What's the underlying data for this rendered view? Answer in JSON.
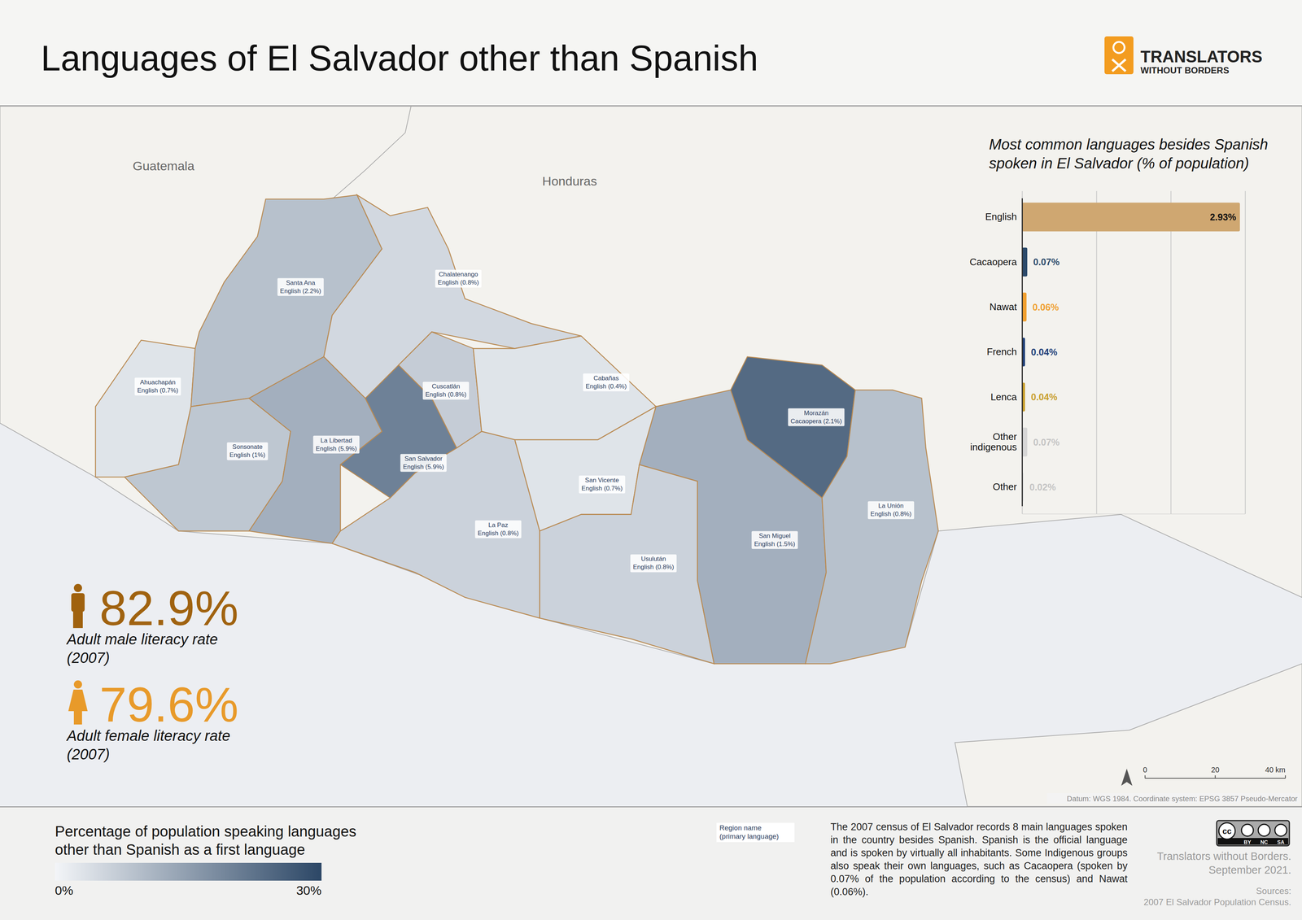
{
  "header": {
    "title": "Languages of El Salvador other than Spanish",
    "logo": [
      "TRANSLATORS",
      "WITHOUT BORDERS"
    ]
  },
  "map": {
    "countries": [
      {
        "name": "Guatemala"
      },
      {
        "name": "Honduras"
      }
    ],
    "regions": [
      {
        "name": "Ahuachapán",
        "label": "English (0.7%)",
        "value": 3
      },
      {
        "name": "Santa Ana",
        "label": "English (2.2%)",
        "value": 9
      },
      {
        "name": "Sonsonate",
        "label": "English (1%)",
        "value": 8
      },
      {
        "name": "La Libertad",
        "label": "English (5.9%)",
        "value": 12
      },
      {
        "name": "San Salvador",
        "label": "English (5.9%)",
        "value": 20
      },
      {
        "name": "Chalatenango",
        "label": "English (0.8%)",
        "value": 5
      },
      {
        "name": "Cuscatlán",
        "label": "English (0.8%)",
        "value": 7
      },
      {
        "name": "Cabañas",
        "label": "English (0.4%)",
        "value": 3
      },
      {
        "name": "La Paz",
        "label": "English (0.8%)",
        "value": 6
      },
      {
        "name": "San Vicente",
        "label": "English (0.7%)",
        "value": 3
      },
      {
        "name": "Usulután",
        "label": "English (0.8%)",
        "value": 6
      },
      {
        "name": "San Miguel",
        "label": "English (1.5%)",
        "value": 12
      },
      {
        "name": "Morazán",
        "label": "Cacaopera (2.1%)",
        "value": 24
      },
      {
        "name": "La Unión",
        "label": "English (0.8%)",
        "value": 9
      }
    ],
    "scale_bar": {
      "ticks": [
        {
          "value": 0,
          "label": "0"
        },
        {
          "value": 20,
          "label": "20"
        },
        {
          "value": 40,
          "label": "40 km"
        }
      ]
    },
    "datum": "Datum: WGS 1984. Coordinate system: EPSG 3857 Pseudo-Mercator"
  },
  "chart_data": {
    "type": "bar",
    "title": [
      "Most common languages besides Spanish",
      "spoken in El Salvador (% of population)"
    ],
    "orientation": "horizontal",
    "categories": [
      "English",
      "Cacaopera",
      "Nawat",
      "French",
      "Lenca",
      "Other indigenous",
      "Other"
    ],
    "values": [
      2.93,
      0.07,
      0.06,
      0.04,
      0.04,
      0.07,
      0.02
    ],
    "value_labels": [
      "2.93%",
      "0.07%",
      "0.06%",
      "0.04%",
      "0.04%",
      "0.07%",
      "0.02%"
    ],
    "colors": [
      "#cfa771",
      "#2b4a6b",
      "#f0a030",
      "#1f3f78",
      "#c9a02e",
      "#d6d6d6",
      "#e2e2e2"
    ],
    "xlim": [
      0,
      3
    ],
    "xticks": [
      0,
      1,
      2,
      3
    ],
    "grid": true,
    "data_labels": true,
    "tick_labels": "y"
  },
  "stats": [
    {
      "label": "82.9%",
      "caption": "Adult male literacy rate",
      "year": "(2007)"
    },
    {
      "label": "79.6%",
      "caption": "Adult female literacy rate",
      "year": "(2007)"
    }
  ],
  "legend": {
    "title": [
      "Percentage of population speaking languages",
      "other than Spanish as a first language"
    ],
    "range": [
      0,
      30
    ],
    "ticks": [
      {
        "value": 0,
        "label": "0%"
      },
      {
        "value": 30,
        "label": "30%"
      }
    ]
  },
  "key": [
    "Region name",
    "(primary language)"
  ],
  "note": "The 2007 census of El Salvador records 8 main languages spoken in the country besides Spanish. Spanish is the official language and is spoken by virtually all inhabitants. Some Indigenous groups also speak their own languages, such as Cacaopera (spoken by 0.07% of the population according to the census) and Nawat (0.06%).",
  "credits": {
    "license": [
      "cc",
      "BY",
      "NC",
      "SA"
    ],
    "org": "Translators without Borders.",
    "date": "September 2021.",
    "sources_title": "Sources:",
    "sources": "2007 El Salvador Population Census."
  }
}
